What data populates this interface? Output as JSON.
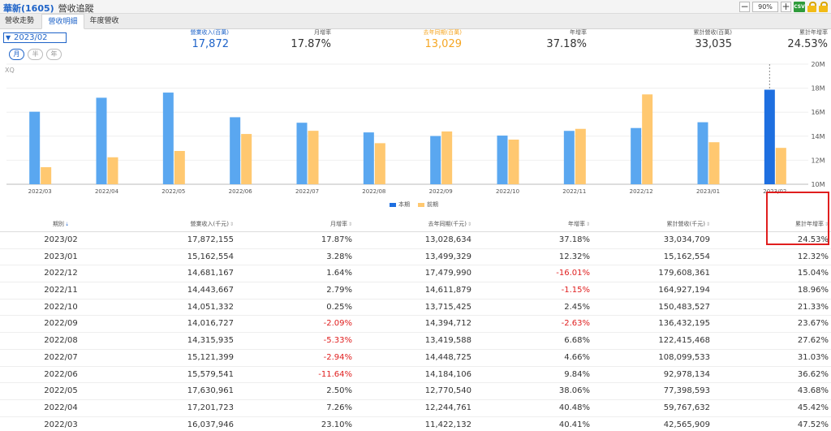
{
  "header": {
    "title": "華新(1605)",
    "subtitle": "營收追蹤",
    "zoom": "90%",
    "zoom_out": "−",
    "zoom_in": "+",
    "csv": "CSV"
  },
  "tabs": [
    {
      "label": "營收走勢",
      "active": false
    },
    {
      "label": "營收明細",
      "active": true
    },
    {
      "label": "年度營收",
      "active": false
    }
  ],
  "controls": {
    "period": "2023/02",
    "granularity": [
      {
        "label": "月",
        "active": true
      },
      {
        "label": "半",
        "active": false
      },
      {
        "label": "年",
        "active": false
      }
    ],
    "source_label": "XQ"
  },
  "summary": [
    {
      "label": "營業收入(百萬)",
      "value": "17,872",
      "color": "#1e63c8"
    },
    {
      "label": "月增率",
      "value": "17.87%",
      "color": "#333333"
    },
    {
      "label": "去年同期(百萬)",
      "value": "13,029",
      "color": "#f5a623"
    },
    {
      "label": "年增率",
      "value": "37.18%",
      "color": "#333333"
    },
    {
      "label": "累計營收(百萬)",
      "value": "33,035",
      "color": "#333333"
    },
    {
      "label": "累計年增率",
      "value": "24.53%",
      "color": "#333333"
    }
  ],
  "chart_data": {
    "type": "bar",
    "categories": [
      "2022/03",
      "2022/04",
      "2022/05",
      "2022/06",
      "2022/07",
      "2022/08",
      "2022/09",
      "2022/10",
      "2022/11",
      "2022/12",
      "2023/01",
      "2023/02"
    ],
    "series": [
      {
        "name": "本期",
        "color": "#5aa7f0",
        "highlight_color": "#1e6fe0",
        "values": [
          16037946,
          17201723,
          17630961,
          15579541,
          15121399,
          14315935,
          14016727,
          14051332,
          14443667,
          14681167,
          15162554,
          17872155
        ]
      },
      {
        "name": "前期",
        "color": "#ffc870",
        "values": [
          11422132,
          12244761,
          12770540,
          14184106,
          14448725,
          13419588,
          14394712,
          13715425,
          14611879,
          17479990,
          13499329,
          13028634
        ]
      }
    ],
    "y_ticks": [
      "10M",
      "12M",
      "14M",
      "16M",
      "18M",
      "20M"
    ],
    "ylim": [
      10000000,
      20000000
    ],
    "grid": true,
    "legend_position": "bottom-center"
  },
  "table": {
    "headers": [
      "期別",
      "營業收入(千元)",
      "月增率",
      "去年同期(千元)",
      "年增率",
      "累計營收(千元)",
      "累計年增率"
    ],
    "rows": [
      {
        "period": "2023/02",
        "revenue": "17,872,155",
        "mom": "17.87%",
        "last_year": "13,028,634",
        "yoy": "37.18%",
        "cum": "33,034,709",
        "cum_yoy": "24.53%"
      },
      {
        "period": "2023/01",
        "revenue": "15,162,554",
        "mom": "3.28%",
        "last_year": "13,499,329",
        "yoy": "12.32%",
        "cum": "15,162,554",
        "cum_yoy": "12.32%"
      },
      {
        "period": "2022/12",
        "revenue": "14,681,167",
        "mom": "1.64%",
        "last_year": "17,479,990",
        "yoy": "-16.01%",
        "cum": "179,608,361",
        "cum_yoy": "15.04%"
      },
      {
        "period": "2022/11",
        "revenue": "14,443,667",
        "mom": "2.79%",
        "last_year": "14,611,879",
        "yoy": "-1.15%",
        "cum": "164,927,194",
        "cum_yoy": "18.96%"
      },
      {
        "period": "2022/10",
        "revenue": "14,051,332",
        "mom": "0.25%",
        "last_year": "13,715,425",
        "yoy": "2.45%",
        "cum": "150,483,527",
        "cum_yoy": "21.33%"
      },
      {
        "period": "2022/09",
        "revenue": "14,016,727",
        "mom": "-2.09%",
        "last_year": "14,394,712",
        "yoy": "-2.63%",
        "cum": "136,432,195",
        "cum_yoy": "23.67%"
      },
      {
        "period": "2022/08",
        "revenue": "14,315,935",
        "mom": "-5.33%",
        "last_year": "13,419,588",
        "yoy": "6.68%",
        "cum": "122,415,468",
        "cum_yoy": "27.62%"
      },
      {
        "period": "2022/07",
        "revenue": "15,121,399",
        "mom": "-2.94%",
        "last_year": "14,448,725",
        "yoy": "4.66%",
        "cum": "108,099,533",
        "cum_yoy": "31.03%"
      },
      {
        "period": "2022/06",
        "revenue": "15,579,541",
        "mom": "-11.64%",
        "last_year": "14,184,106",
        "yoy": "9.84%",
        "cum": "92,978,134",
        "cum_yoy": "36.62%"
      },
      {
        "period": "2022/05",
        "revenue": "17,630,961",
        "mom": "2.50%",
        "last_year": "12,770,540",
        "yoy": "38.06%",
        "cum": "77,398,593",
        "cum_yoy": "43.68%"
      },
      {
        "period": "2022/04",
        "revenue": "17,201,723",
        "mom": "7.26%",
        "last_year": "12,244,761",
        "yoy": "40.48%",
        "cum": "59,767,632",
        "cum_yoy": "45.42%"
      },
      {
        "period": "2022/03",
        "revenue": "16,037,946",
        "mom": "23.10%",
        "last_year": "11,422,132",
        "yoy": "40.41%",
        "cum": "42,565,909",
        "cum_yoy": "47.52%"
      }
    ]
  },
  "colors": {
    "accent": "#1e63c8",
    "negative": "#e02020",
    "highlight_box": "#e01e1e"
  }
}
